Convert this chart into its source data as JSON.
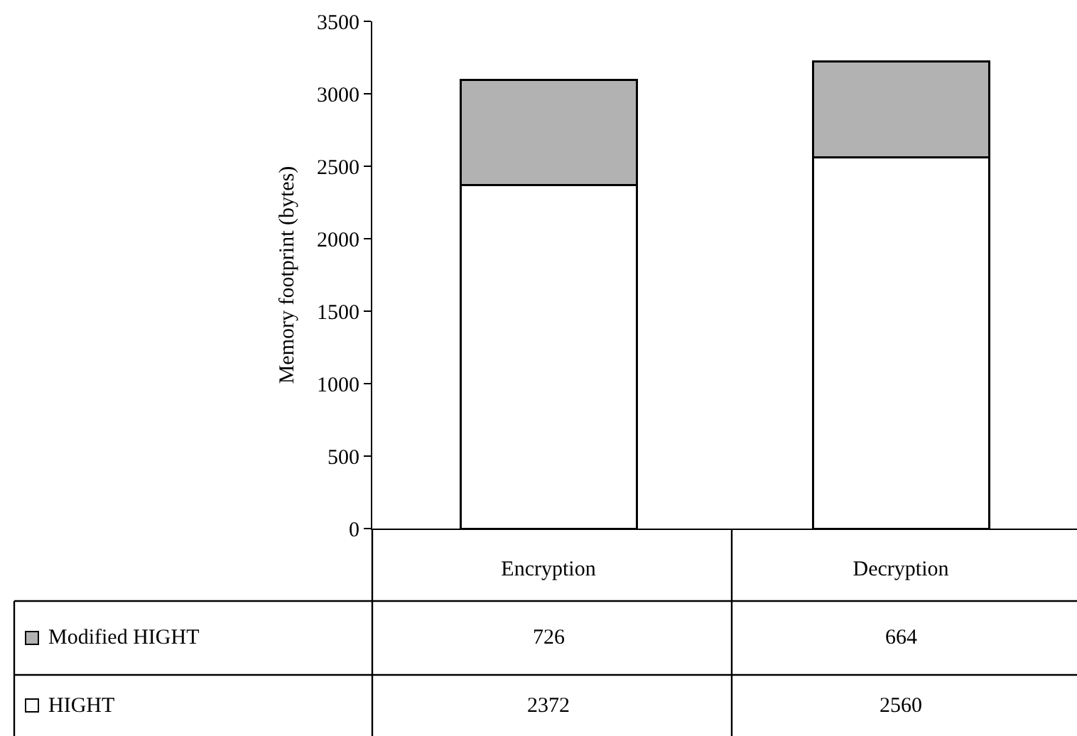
{
  "chart_data": {
    "type": "bar",
    "stacked": true,
    "ylabel": "Memory footprint (bytes)",
    "categories": [
      "Encryption",
      "Decryption"
    ],
    "series": [
      {
        "name": "HIGHT",
        "color": "#ffffff",
        "values": [
          2372,
          2560
        ]
      },
      {
        "name": "Modified HIGHT",
        "color": "#b2b2b2",
        "values": [
          726,
          664
        ]
      }
    ],
    "ylim": [
      0,
      3500
    ],
    "yticks": [
      0,
      500,
      1000,
      1500,
      2000,
      2500,
      3000,
      3500
    ],
    "grid": false,
    "legend": "bottom left",
    "data_labels": true
  }
}
